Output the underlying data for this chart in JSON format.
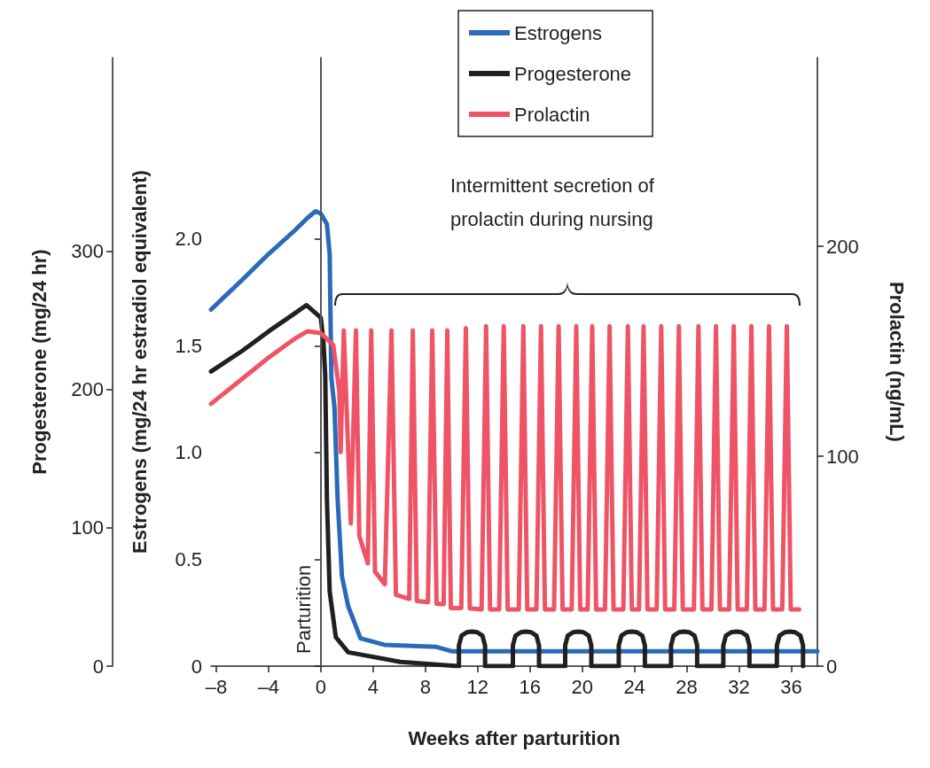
{
  "chart_data": {
    "type": "line",
    "xlabel": "Weeks after parturition",
    "ylabel": "Estrogens (mg/24 hr estradiol equivalent)",
    "y2label": "Prolactin (ng/mL)",
    "y3label": "Progesterone (mg/24 hr)",
    "xlim": [
      -8.4,
      38
    ],
    "xticks": [
      {
        "value": -8,
        "label": "–8"
      },
      {
        "value": -4,
        "label": "–4"
      },
      0,
      4,
      8,
      12,
      16,
      20,
      24,
      28,
      32,
      36
    ],
    "ylim": [
      0,
      2.85
    ],
    "yticks": [
      0,
      0.5,
      {
        "value": 1,
        "label": "1.0"
      },
      1.5,
      {
        "value": 2,
        "label": "2.0"
      }
    ],
    "y2lim": [
      0,
      290
    ],
    "y2ticks": [
      0,
      100,
      200
    ],
    "y3lim": [
      0,
      440
    ],
    "y3ticks": [
      0,
      100,
      200,
      300
    ],
    "grid": false,
    "legend": "top",
    "marker": "none",
    "line_style": "solid",
    "ref_lines": [
      {
        "axis": "x",
        "value": 0,
        "label": "Parturition",
        "color": "#555555"
      }
    ],
    "annotations": [
      "Intermittent secretion of prolactin during nursing"
    ],
    "series": [
      {
        "name": "Estrogens",
        "color": "#2a6ab8",
        "axis": "y",
        "x": [
          -8.4,
          -6,
          -4,
          -2,
          -1,
          -0.4,
          0,
          0.47,
          0.68,
          0.81,
          1.05,
          1.29,
          1.62,
          2.1,
          3.04,
          4.87,
          8.86,
          10,
          20,
          30,
          38
        ],
        "values": [
          1.67,
          1.81,
          1.93,
          2.04,
          2.1,
          2.13,
          2.12,
          2.07,
          1.93,
          1.35,
          1.21,
          0.78,
          0.42,
          0.28,
          0.13,
          0.1,
          0.09,
          0.07,
          0.07,
          0.07,
          0.07
        ]
      },
      {
        "name": "Progesterone",
        "color": "#231f20",
        "axis": "y3",
        "x": [
          -8.4,
          -6,
          -4,
          -2,
          -1.1,
          0,
          0.2,
          0.34,
          0.47,
          0.68,
          1.15,
          2.1,
          6.1,
          10.5,
          10.57,
          10.57,
          10.77,
          11.17,
          11.57,
          11.97,
          12.37,
          12.57,
          12.57,
          14.7,
          14.7,
          14.9,
          15.3,
          15.7,
          16.1,
          16.5,
          16.7,
          16.7,
          18.7,
          18.7,
          18.9,
          19.3,
          19.7,
          20.1,
          20.5,
          20.7,
          20.7,
          22.8,
          22.8,
          23,
          23.4,
          23.8,
          24.2,
          24.6,
          24.8,
          24.8,
          26.8,
          26.8,
          27,
          27.4,
          27.8,
          28.2,
          28.6,
          28.8,
          28.8,
          30.8,
          30.8,
          31,
          31.4,
          31.8,
          32.2,
          32.6,
          32.8,
          32.8,
          34.9,
          34.9,
          35.1,
          35.5,
          35.9,
          36.3,
          36.7,
          36.9,
          36.9
        ],
        "values": [
          213,
          228,
          242,
          255,
          261,
          252,
          235,
          210,
          121,
          54,
          21,
          10,
          3,
          0,
          0,
          15,
          22,
          24.5,
          25,
          24.5,
          22,
          15,
          0,
          0,
          15,
          22,
          24.5,
          25,
          24.5,
          22,
          15,
          0,
          0,
          15,
          22,
          24.5,
          25,
          24.5,
          22,
          15,
          0,
          0,
          15,
          22,
          24.5,
          25,
          24.5,
          22,
          15,
          0,
          0,
          15,
          22,
          24.5,
          25,
          24.5,
          22,
          15,
          0,
          0,
          15,
          22,
          24.5,
          25,
          24.5,
          22,
          15,
          0,
          0,
          15,
          22,
          24.5,
          25,
          24.5,
          22,
          15,
          0
        ]
      },
      {
        "name": "Prolactin",
        "color": "#ef5466",
        "axis": "y2",
        "x": [
          -8.4,
          -6,
          -4,
          -2,
          -1,
          0,
          0.95,
          1.42,
          1.52,
          1.76,
          2.3,
          2.69,
          2.95,
          3.6,
          3.86,
          4.15,
          4.9,
          5.41,
          5.75,
          6.77,
          7.04,
          7.35,
          8.2,
          8.53,
          8.86,
          9.4,
          9.68,
          9.95,
          10.75,
          11.1,
          11.4,
          12.3,
          12.65,
          12.95,
          13.65,
          14,
          14.3,
          15.15,
          15.5,
          15.8,
          16.5,
          16.85,
          17.15,
          17.85,
          18.2,
          18.5,
          19.2,
          19.55,
          19.85,
          20.42,
          20.77,
          21.07,
          21.75,
          22.1,
          22.4,
          23.15,
          23.5,
          23.8,
          24.35,
          24.7,
          25,
          25.7,
          26.05,
          26.35,
          27.05,
          27.4,
          27.7,
          28.55,
          28.9,
          29.2,
          29.89,
          30.24,
          30.54,
          31.25,
          31.6,
          31.9,
          32.6,
          32.95,
          33.25,
          33.95,
          34.3,
          34.6,
          35.31,
          35.66,
          35.96,
          36.6
        ],
        "values": [
          125,
          137,
          147,
          156,
          159.6,
          158.7,
          153,
          131,
          102,
          160,
          68,
          160,
          62,
          49,
          160,
          45,
          39,
          160,
          34,
          32,
          160,
          31,
          30.5,
          160,
          29.8,
          29.5,
          160,
          27.7,
          27.7,
          161,
          27.5,
          27,
          162,
          27,
          27,
          162,
          27,
          27,
          162,
          27,
          27,
          162,
          27,
          27,
          162,
          27,
          27,
          162,
          27,
          27,
          162,
          27,
          27,
          162,
          27,
          27,
          162,
          27,
          27,
          162,
          27,
          27,
          162,
          27,
          27,
          162,
          27,
          27,
          162,
          27,
          27,
          162,
          27,
          27,
          162,
          27,
          27,
          162,
          27,
          27,
          162,
          27,
          27,
          162,
          27,
          27
        ]
      }
    ]
  }
}
